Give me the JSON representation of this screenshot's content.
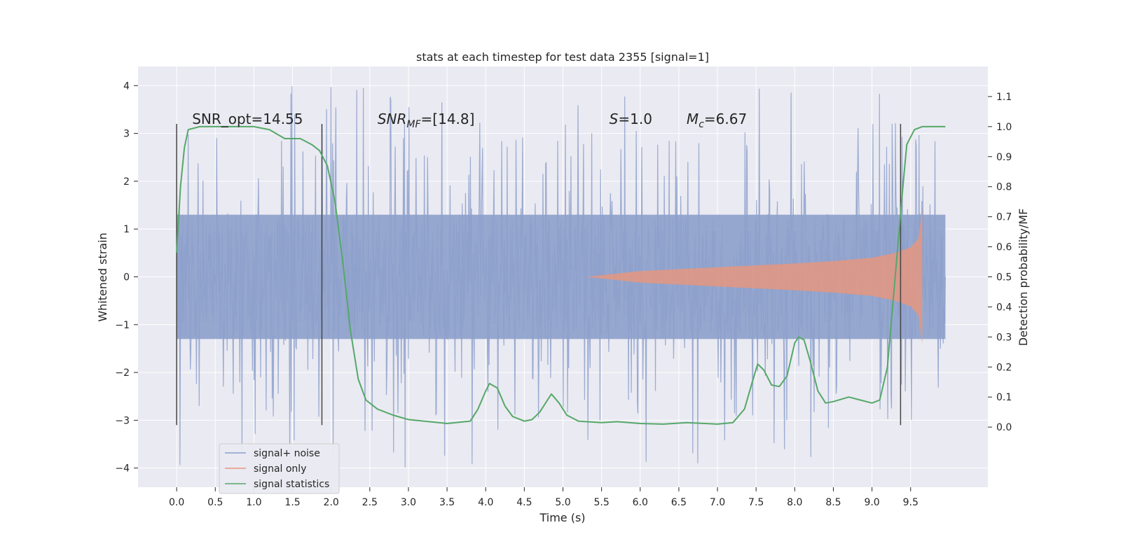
{
  "chart_data": {
    "type": "line",
    "title": "stats at each timestep for test data 2355 [signal=1]",
    "xlabel": "Time (s)",
    "ylabel": "Whitened strain",
    "ylabel_right": "Detection probability/MF",
    "xlim": [
      -0.5,
      10.5
    ],
    "ylim": [
      -4.4,
      4.4
    ],
    "ylim_right": [
      -0.2,
      1.2
    ],
    "x_ticks": [
      "0.0",
      "0.5",
      "1.0",
      "1.5",
      "2.0",
      "2.5",
      "3.0",
      "3.5",
      "4.0",
      "4.5",
      "5.0",
      "5.5",
      "6.0",
      "6.5",
      "7.0",
      "7.5",
      "8.0",
      "8.5",
      "9.0",
      "9.5"
    ],
    "x_tick_values": [
      0,
      0.5,
      1,
      1.5,
      2,
      2.5,
      3,
      3.5,
      4,
      4.5,
      5,
      5.5,
      6,
      6.5,
      7,
      7.5,
      8,
      8.5,
      9,
      9.5
    ],
    "y_ticks": [
      "−4",
      "−3",
      "−2",
      "−1",
      "0",
      "1",
      "2",
      "3",
      "4"
    ],
    "y_tick_values": [
      -4,
      -3,
      -2,
      -1,
      0,
      1,
      2,
      3,
      4
    ],
    "y_right_ticks": [
      "0.0",
      "0.1",
      "0.2",
      "0.3",
      "0.4",
      "0.5",
      "0.6",
      "0.7",
      "0.8",
      "0.9",
      "1.0",
      "1.1"
    ],
    "y_right_tick_values": [
      0,
      0.1,
      0.2,
      0.3,
      0.4,
      0.5,
      0.6,
      0.7,
      0.8,
      0.9,
      1.0,
      1.1
    ],
    "grid": true,
    "legend_position": "lower-left",
    "series": [
      {
        "name": "signal+ noise",
        "color": "#8da0cb",
        "axis": "left",
        "x_range": [
          0,
          9.95
        ],
        "typical_abs": 1.3,
        "peak_abs": 4.0
      },
      {
        "name": "signal only",
        "color": "#e5977f",
        "axis": "left",
        "x_range": [
          5.3,
          9.65
        ],
        "envelope": [
          [
            5.3,
            0.0
          ],
          [
            6.0,
            0.12
          ],
          [
            7.0,
            0.2
          ],
          [
            8.0,
            0.28
          ],
          [
            8.5,
            0.33
          ],
          [
            9.0,
            0.4
          ],
          [
            9.3,
            0.5
          ],
          [
            9.5,
            0.62
          ],
          [
            9.6,
            0.8
          ],
          [
            9.65,
            1.4
          ]
        ]
      },
      {
        "name": "signal statistics",
        "color": "#55a868",
        "axis": "right",
        "points": [
          [
            0.0,
            0.58
          ],
          [
            0.05,
            0.8
          ],
          [
            0.1,
            0.93
          ],
          [
            0.15,
            0.99
          ],
          [
            0.3,
            1.0
          ],
          [
            1.0,
            1.0
          ],
          [
            1.2,
            0.99
          ],
          [
            1.4,
            0.96
          ],
          [
            1.6,
            0.96
          ],
          [
            1.75,
            0.94
          ],
          [
            1.85,
            0.92
          ],
          [
            1.95,
            0.87
          ],
          [
            2.05,
            0.75
          ],
          [
            2.15,
            0.55
          ],
          [
            2.25,
            0.32
          ],
          [
            2.35,
            0.16
          ],
          [
            2.45,
            0.09
          ],
          [
            2.6,
            0.06
          ],
          [
            2.8,
            0.04
          ],
          [
            3.0,
            0.025
          ],
          [
            3.5,
            0.012
          ],
          [
            3.8,
            0.02
          ],
          [
            3.9,
            0.06
          ],
          [
            4.0,
            0.12
          ],
          [
            4.05,
            0.145
          ],
          [
            4.15,
            0.13
          ],
          [
            4.25,
            0.07
          ],
          [
            4.35,
            0.035
          ],
          [
            4.5,
            0.02
          ],
          [
            4.6,
            0.025
          ],
          [
            4.7,
            0.05
          ],
          [
            4.8,
            0.09
          ],
          [
            4.85,
            0.11
          ],
          [
            4.95,
            0.08
          ],
          [
            5.05,
            0.04
          ],
          [
            5.2,
            0.02
          ],
          [
            5.5,
            0.015
          ],
          [
            5.7,
            0.018
          ],
          [
            6.0,
            0.012
          ],
          [
            6.3,
            0.01
          ],
          [
            6.6,
            0.015
          ],
          [
            7.0,
            0.01
          ],
          [
            7.2,
            0.015
          ],
          [
            7.35,
            0.06
          ],
          [
            7.45,
            0.15
          ],
          [
            7.52,
            0.21
          ],
          [
            7.6,
            0.19
          ],
          [
            7.7,
            0.14
          ],
          [
            7.8,
            0.135
          ],
          [
            7.9,
            0.17
          ],
          [
            8.0,
            0.28
          ],
          [
            8.05,
            0.3
          ],
          [
            8.12,
            0.29
          ],
          [
            8.2,
            0.22
          ],
          [
            8.3,
            0.12
          ],
          [
            8.4,
            0.08
          ],
          [
            8.5,
            0.085
          ],
          [
            8.7,
            0.1
          ],
          [
            8.85,
            0.09
          ],
          [
            9.0,
            0.08
          ],
          [
            9.1,
            0.09
          ],
          [
            9.2,
            0.2
          ],
          [
            9.3,
            0.5
          ],
          [
            9.4,
            0.8
          ],
          [
            9.45,
            0.94
          ],
          [
            9.55,
            0.99
          ],
          [
            9.65,
            1.0
          ],
          [
            9.95,
            1.0
          ]
        ]
      }
    ],
    "vertical_lines": [
      0.0,
      1.88,
      9.37
    ],
    "vertical_line_range": [
      -3.1,
      3.2
    ],
    "annotations": [
      {
        "text": "SNR_opt=14.55",
        "x": 0.2,
        "y": 3.2
      },
      {
        "text": "SNR",
        "sub": "MF",
        "tail": "=[14.8]",
        "x": 2.6,
        "y": 3.2
      },
      {
        "text": "S",
        "tail": "=1.0",
        "x": 5.6,
        "y": 3.2
      },
      {
        "text": "M",
        "sub": "c",
        "tail": "=6.67",
        "x": 6.6,
        "y": 3.2
      }
    ]
  }
}
